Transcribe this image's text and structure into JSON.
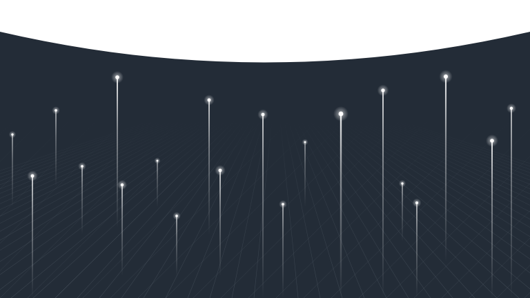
{
  "colors": {
    "top_background": "#ffffff",
    "panel_background": "#232c37",
    "grid_line": "#5a6570",
    "light_head": "#ffffff",
    "light_trail": "#ffffff"
  },
  "lights": [
    {
      "name": "light-1"
    },
    {
      "name": "light-2"
    },
    {
      "name": "light-3"
    },
    {
      "name": "light-4"
    },
    {
      "name": "light-5"
    },
    {
      "name": "light-6"
    },
    {
      "name": "light-7"
    },
    {
      "name": "light-8"
    },
    {
      "name": "light-9"
    },
    {
      "name": "light-10"
    },
    {
      "name": "light-11"
    },
    {
      "name": "light-12"
    },
    {
      "name": "light-13"
    },
    {
      "name": "light-14"
    },
    {
      "name": "light-15"
    },
    {
      "name": "light-16"
    },
    {
      "name": "light-17"
    },
    {
      "name": "light-18"
    },
    {
      "name": "light-19"
    },
    {
      "name": "light-20"
    }
  ]
}
